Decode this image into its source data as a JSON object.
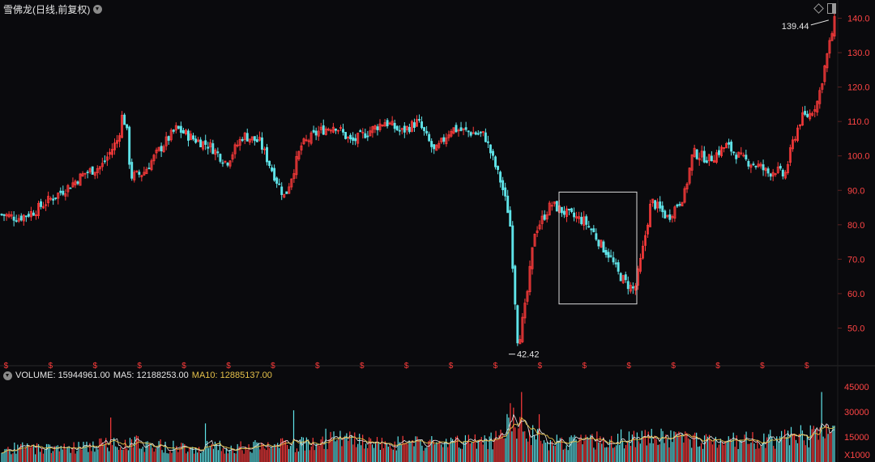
{
  "header": {
    "title": "雪佛龙(日线,前复权)"
  },
  "volume_legend": {
    "volume": "VOLUME: 15944961.00",
    "ma5": "MA5: 12188253.00",
    "ma10": "MA10: 12885137.00"
  },
  "colors": {
    "up": "#ff3b3b",
    "down": "#5fe3e8",
    "ma5": "#e8e8e8",
    "ma10": "#e5c14a",
    "axis_label": "#ff4444"
  },
  "chart_data": [
    {
      "type": "candlestick",
      "title": "雪佛龙(日线,前复权)",
      "ylim": [
        40,
        142
      ],
      "y_ticks": [
        "140.0",
        "130.0",
        "120.0",
        "110.0",
        "100.0",
        "90.0",
        "80.0",
        "70.0",
        "60.0",
        "50.0"
      ],
      "y_tick_values": [
        140,
        130,
        120,
        110,
        100,
        90,
        80,
        70,
        60,
        50
      ],
      "annotations": {
        "max_label": "139.44",
        "max_value": 139.44,
        "min_label": "42.42",
        "min_value": 42.42
      },
      "dividend_marker": "$",
      "dividend_count": 19,
      "highlight_box": {
        "y_range": [
          57,
          89.5
        ]
      },
      "price_path": [
        [
          0,
          83
        ],
        [
          0.02,
          82
        ],
        [
          0.04,
          84
        ],
        [
          0.05,
          86
        ],
        [
          0.08,
          91
        ],
        [
          0.1,
          95
        ],
        [
          0.12,
          97
        ],
        [
          0.14,
          105
        ],
        [
          0.145,
          112
        ],
        [
          0.15,
          108
        ],
        [
          0.155,
          94
        ],
        [
          0.17,
          95
        ],
        [
          0.19,
          102
        ],
        [
          0.21,
          108
        ],
        [
          0.23,
          105
        ],
        [
          0.25,
          103
        ],
        [
          0.27,
          98
        ],
        [
          0.29,
          106
        ],
        [
          0.31,
          104
        ],
        [
          0.33,
          93
        ],
        [
          0.34,
          88
        ],
        [
          0.36,
          103
        ],
        [
          0.38,
          107
        ],
        [
          0.4,
          109
        ],
        [
          0.42,
          104
        ],
        [
          0.44,
          107
        ],
        [
          0.46,
          110
        ],
        [
          0.48,
          107
        ],
        [
          0.5,
          110
        ],
        [
          0.52,
          101
        ],
        [
          0.54,
          108
        ],
        [
          0.56,
          107
        ],
        [
          0.58,
          106
        ],
        [
          0.6,
          92
        ],
        [
          0.61,
          82
        ],
        [
          0.62,
          45
        ],
        [
          0.63,
          58
        ],
        [
          0.64,
          78
        ],
        [
          0.66,
          86
        ],
        [
          0.68,
          83
        ],
        [
          0.7,
          81
        ],
        [
          0.71,
          78
        ],
        [
          0.72,
          74
        ],
        [
          0.73,
          71
        ],
        [
          0.74,
          66
        ],
        [
          0.75,
          63
        ],
        [
          0.76,
          61
        ],
        [
          0.77,
          73
        ],
        [
          0.78,
          87
        ],
        [
          0.8,
          82
        ],
        [
          0.82,
          89
        ],
        [
          0.83,
          101
        ],
        [
          0.85,
          99
        ],
        [
          0.87,
          103
        ],
        [
          0.89,
          99
        ],
        [
          0.91,
          97
        ],
        [
          0.92,
          95
        ],
        [
          0.93,
          96
        ],
        [
          0.94,
          94
        ],
        [
          0.95,
          104
        ],
        [
          0.96,
          111
        ],
        [
          0.97,
          112
        ],
        [
          0.98,
          116
        ],
        [
          0.99,
          128
        ],
        [
          1.0,
          139
        ]
      ]
    },
    {
      "type": "bar",
      "title": "VOLUME",
      "ylim": [
        0,
        45000
      ],
      "y_ticks": [
        "45000",
        "30000",
        "15000"
      ],
      "y_tick_values": [
        45000,
        30000,
        15000
      ],
      "unit_label": "X1000",
      "series": [
        {
          "name": "VOLUME",
          "last_value": 15944961.0
        },
        {
          "name": "MA5",
          "last_value": 12188253.0
        },
        {
          "name": "MA10",
          "last_value": 12885137.0
        }
      ],
      "volume_profile": [
        [
          0,
          8000
        ],
        [
          0.1,
          9000
        ],
        [
          0.15,
          12000
        ],
        [
          0.2,
          9000
        ],
        [
          0.3,
          9000
        ],
        [
          0.38,
          11000
        ],
        [
          0.39,
          14000
        ],
        [
          0.45,
          11000
        ],
        [
          0.55,
          11000
        ],
        [
          0.6,
          14000
        ],
        [
          0.61,
          26000
        ],
        [
          0.63,
          18000
        ],
        [
          0.66,
          12000
        ],
        [
          0.7,
          12000
        ],
        [
          0.75,
          14000
        ],
        [
          0.8,
          14000
        ],
        [
          0.85,
          13000
        ],
        [
          0.9,
          13000
        ],
        [
          0.95,
          15000
        ],
        [
          1.0,
          16000
        ]
      ]
    }
  ]
}
